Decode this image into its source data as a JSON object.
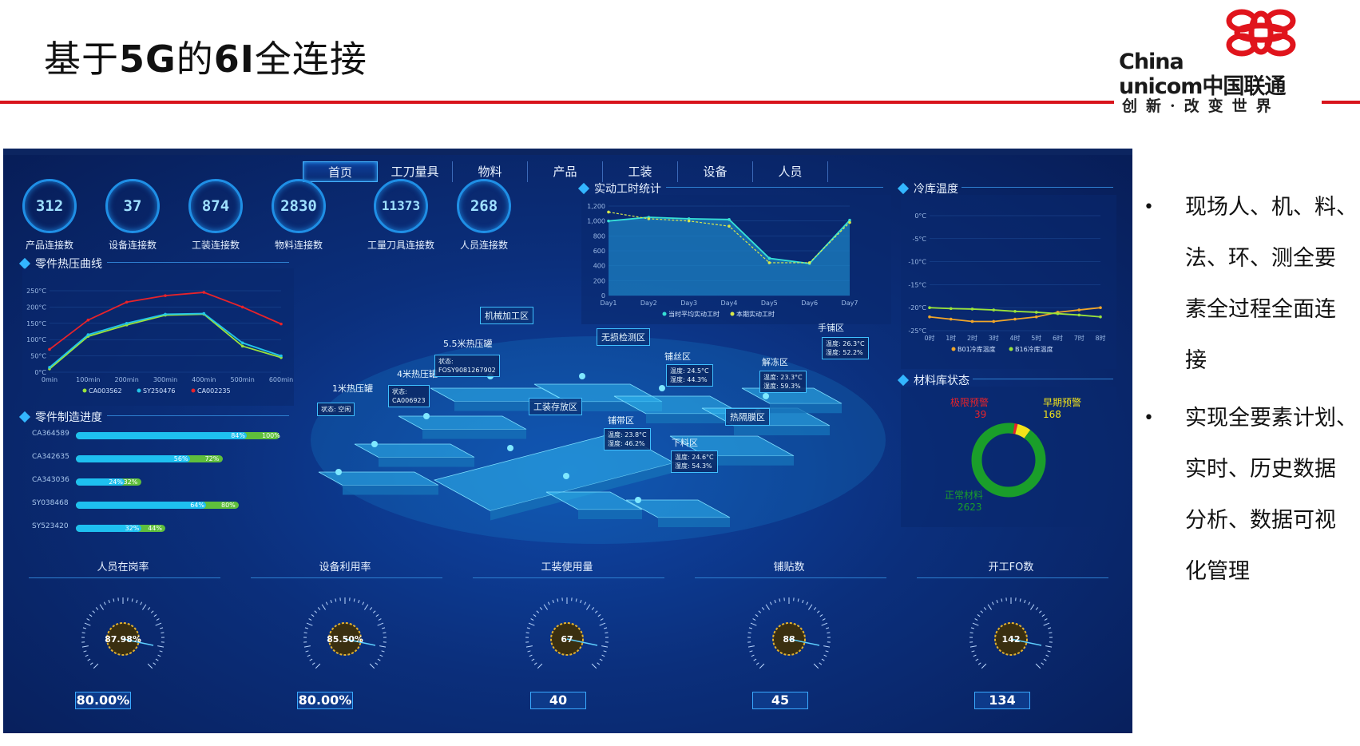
{
  "slide": {
    "title": "基于5G的6I全连接",
    "logo": {
      "line1": "China",
      "line2": "unicom中国联通",
      "tagline": "创新·改变世界"
    }
  },
  "nav": [
    "首页",
    "工刀量具",
    "物料",
    "产品",
    "工装",
    "设备",
    "人员"
  ],
  "counters": [
    {
      "value": "312",
      "label": "产品连接数"
    },
    {
      "value": "37",
      "label": "设备连接数"
    },
    {
      "value": "874",
      "label": "工装连接数"
    },
    {
      "value": "2830",
      "label": "物料连接数"
    },
    {
      "value": "11373",
      "label": "工量刀具连接数"
    },
    {
      "value": "268",
      "label": "人员连接数"
    }
  ],
  "sections": {
    "hot_press": "零件热压曲线",
    "progress": "零件制造进度",
    "work_hours": "实动工时统计",
    "cold_store": "冷库温度",
    "material": "材料库状态"
  },
  "hot_press_chart": {
    "type": "line",
    "x": [
      "0min",
      "100min",
      "200min",
      "300min",
      "400min",
      "500min",
      "600min"
    ],
    "yticks": [
      "250°C",
      "200°C",
      "150°C",
      "100°C",
      "50°C",
      "0°C"
    ],
    "series": [
      {
        "name": "CA003562",
        "color": "#9be33a",
        "values": [
          10,
          110,
          145,
          175,
          178,
          80,
          45
        ]
      },
      {
        "name": "SY250476",
        "color": "#22c5e8",
        "values": [
          15,
          115,
          150,
          178,
          180,
          90,
          50
        ]
      },
      {
        "name": "CA002235",
        "color": "#e8232a",
        "values": [
          70,
          160,
          215,
          235,
          245,
          200,
          148
        ]
      }
    ],
    "ylim": [
      0,
      250
    ]
  },
  "progress_rows": [
    {
      "name": "CA364589",
      "a": 84,
      "b": 100,
      "a_label": "84%",
      "b_label": "100%"
    },
    {
      "name": "CA342635",
      "a": 56,
      "b": 72,
      "a_label": "56%",
      "b_label": "72%"
    },
    {
      "name": "CA343036",
      "a": 24,
      "b": 32,
      "a_label": "24%",
      "b_label": "32%"
    },
    {
      "name": "SY038468",
      "a": 64,
      "b": 80,
      "a_label": "64%",
      "b_label": "80%"
    },
    {
      "name": "SY523420",
      "a": 32,
      "b": 44,
      "a_label": "32%",
      "b_label": "44%"
    }
  ],
  "work_hours_chart": {
    "type": "area",
    "x": [
      "Day1",
      "Day2",
      "Day3",
      "Day4",
      "Day5",
      "Day6",
      "Day7"
    ],
    "yticks": [
      "1,200",
      "1,000",
      "800",
      "600",
      "400",
      "200",
      "0"
    ],
    "series": [
      {
        "name": "当时平均实动工时",
        "color": "#36e0d6",
        "values": [
          1000,
          1050,
          1030,
          1020,
          500,
          430,
          1010
        ]
      },
      {
        "name": "本期实动工时",
        "color": "#d8e84a",
        "values": [
          1120,
          1030,
          1000,
          930,
          440,
          440,
          980
        ]
      }
    ],
    "ylim": [
      0,
      1200
    ]
  },
  "cold_chart": {
    "type": "line",
    "x": [
      "0时",
      "1时",
      "2时",
      "3时",
      "4时",
      "5时",
      "6时",
      "7时",
      "8时"
    ],
    "yticks": [
      "0°C",
      "-5°C",
      "-10°C",
      "-15°C",
      "-20°C",
      "-25°C"
    ],
    "series": [
      {
        "name": "B01冷库温度",
        "color": "#f0a62a",
        "values": [
          -22,
          -22.5,
          -23,
          -23,
          -22.5,
          -22,
          -21,
          -20.5,
          -20
        ]
      },
      {
        "name": "B16冷库温度",
        "color": "#9be33a",
        "values": [
          -20,
          -20.2,
          -20.3,
          -20.5,
          -20.8,
          -21,
          -21.3,
          -21.6,
          -22
        ]
      }
    ],
    "ylim": [
      -25,
      0
    ]
  },
  "material_donut": {
    "type": "pie",
    "slices": [
      {
        "name": "极限预警",
        "value": 39,
        "color": "#e8232a"
      },
      {
        "name": "早期预警",
        "value": 168,
        "color": "#f2e31a"
      },
      {
        "name": "正常材料",
        "value": 2623,
        "color": "#1a9e2a"
      }
    ]
  },
  "factory": {
    "zones": [
      "机械加工区",
      "无损检测区",
      "5.5米热压罐",
      "4米热压罐",
      "1米热压罐",
      "工装存放区",
      "铺丝区",
      "解冻区",
      "手铺区",
      "铺带区",
      "热隔膜区",
      "下料区"
    ],
    "infos": [
      {
        "k1": "状态:",
        "v1": "FOSY9081267902"
      },
      {
        "k1": "状态:",
        "v1": "CA006923"
      },
      {
        "k1": "状态: 空闲",
        "v1": ""
      },
      {
        "k1": "温度: 24.5°C",
        "v1": "湿度: 44.3%"
      },
      {
        "k1": "温度: 23.3°C",
        "v1": "湿度: 59.3%"
      },
      {
        "k1": "温度: 26.3°C",
        "v1": "湿度: 52.2%"
      },
      {
        "k1": "温度: 23.8°C",
        "v1": "湿度: 46.2%"
      },
      {
        "k1": "温度: 24.6°C",
        "v1": "湿度: 54.3%"
      }
    ]
  },
  "bottom": [
    {
      "title": "人员在岗率",
      "center": "87.98%",
      "box": "80.00%"
    },
    {
      "title": "设备利用率",
      "center": "85.50%",
      "box": "80.00%"
    },
    {
      "title": "工装使用量",
      "center": "67",
      "box": "40"
    },
    {
      "title": "铺贴数",
      "center": "88",
      "box": "45"
    },
    {
      "title": "开工FO数",
      "center": "142",
      "box": "134"
    }
  ],
  "bullets": [
    [
      "现场人、机、料、",
      "法、环、测全要",
      "素全过程全面连",
      "接"
    ],
    [
      "实现全要素计划、",
      "实时、历史数据",
      "分析、数据可视",
      "化管理"
    ]
  ],
  "colors": {
    "brand_red": "#d8141c",
    "dash_bg": "#0b2f7c",
    "accent": "#33b6ff"
  }
}
